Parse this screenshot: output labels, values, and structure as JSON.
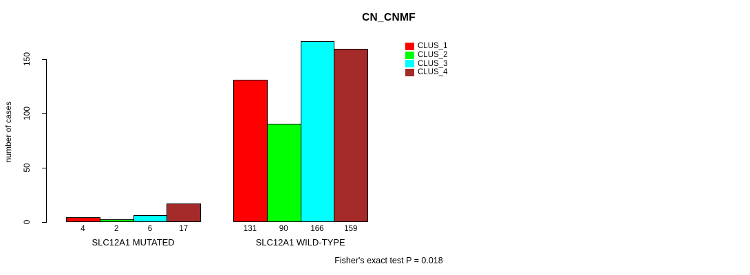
{
  "chart_data": {
    "type": "bar",
    "title": "CN_CNMF",
    "xlabel": "",
    "ylabel": "number of cases",
    "categories": [
      "SLC12A1 MUTATED",
      "SLC12A1 WILD-TYPE"
    ],
    "series": [
      {
        "name": "CLUS_1",
        "color": "#ff0000",
        "values": [
          4,
          131
        ]
      },
      {
        "name": "CLUS_2",
        "color": "#00ff00",
        "values": [
          2,
          90
        ]
      },
      {
        "name": "CLUS_3",
        "color": "#00ffff",
        "values": [
          6,
          166
        ]
      },
      {
        "name": "CLUS_4",
        "color": "#a52a2a",
        "values": [
          17,
          159
        ]
      }
    ],
    "bar_value_labels": true,
    "yticks": [
      0,
      50,
      100,
      150
    ],
    "ylim": [
      0,
      169
    ],
    "grid": false,
    "legend": {
      "position": "upper-right-of-plot",
      "entries": [
        {
          "label": "CLUS_1",
          "color": "#ff0000"
        },
        {
          "label": "CLUS_2",
          "color": "#00ff00"
        },
        {
          "label": "CLUS_3",
          "color": "#00ffff"
        },
        {
          "label": "CLUS_4",
          "color": "#a52a2a"
        }
      ]
    },
    "annotation": "Fisher's exact test P = 0.018",
    "axis_color": "#000000",
    "bar_border_color": "#000000"
  }
}
